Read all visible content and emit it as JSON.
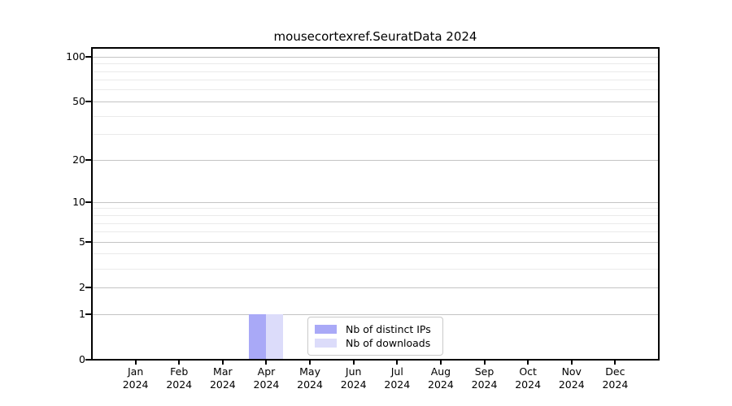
{
  "chart_data": {
    "type": "bar",
    "title": "mousecortexref.SeuratData 2024",
    "categories": [
      "Jan",
      "Feb",
      "Mar",
      "Apr",
      "May",
      "Jun",
      "Jul",
      "Aug",
      "Sep",
      "Oct",
      "Nov",
      "Dec"
    ],
    "x_year_label": "2024",
    "series": [
      {
        "name": "Nb of distinct IPs",
        "color": "#a9a9f7",
        "values": [
          0,
          0,
          0,
          1,
          0,
          0,
          0,
          0,
          0,
          0,
          0,
          0
        ]
      },
      {
        "name": "Nb of downloads",
        "color": "#dcdcfa",
        "values": [
          0,
          0,
          0,
          1,
          0,
          0,
          0,
          0,
          0,
          0,
          0,
          0
        ]
      }
    ],
    "yscale": "log1p",
    "ylim": [
      0,
      115
    ],
    "ytick_values": [
      100,
      50,
      20,
      10,
      5,
      2,
      1,
      0
    ],
    "minor_grid_values": [
      90,
      80,
      70,
      60,
      40,
      30,
      9,
      8,
      7,
      6,
      4,
      3
    ],
    "grid": "on",
    "legend_position": "lower center",
    "colors": {
      "major_grid": "#c4c4c4",
      "minor_grid": "#eaeaea",
      "axis": "#000000",
      "background": "#ffffff"
    }
  }
}
